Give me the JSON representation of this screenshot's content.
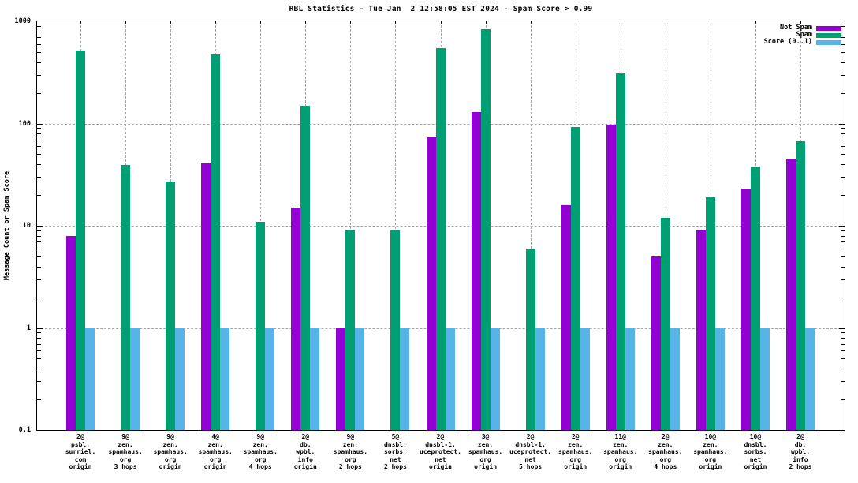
{
  "chart_data": {
    "type": "bar",
    "title": "RBL Statistics - Tue Jan  2 12:58:05 EST 2024 - Spam Score > 0.99",
    "ylabel": "Message Count or Spam Score",
    "xlabel": "",
    "y_scale": "log",
    "ylim": [
      0.1,
      1000
    ],
    "ytick_values": [
      0.1,
      1,
      10,
      100,
      1000
    ],
    "ytick_labels": [
      "0.1",
      "1",
      "10",
      "100",
      "1000"
    ],
    "grid": true,
    "legend_position": "top-right-inside",
    "categories": [
      [
        "2@",
        "psbl.",
        "surriel.",
        "com",
        "origin"
      ],
      [
        "9@",
        "zen.",
        "spamhaus.",
        "org",
        "3 hops"
      ],
      [
        "9@",
        "zen.",
        "spamhaus.",
        "org",
        "origin"
      ],
      [
        "4@",
        "zen.",
        "spamhaus.",
        "org",
        "origin"
      ],
      [
        "9@",
        "zen.",
        "spamhaus.",
        "org",
        "4 hops"
      ],
      [
        "2@",
        "db.",
        "wpbl.",
        "info",
        "origin"
      ],
      [
        "9@",
        "zen.",
        "spamhaus.",
        "org",
        "2 hops"
      ],
      [
        "5@",
        "dnsbl.",
        "sorbs.",
        "net",
        "2 hops"
      ],
      [
        "2@",
        "dnsbl-1.",
        "uceprotect.",
        "net",
        "origin"
      ],
      [
        "3@",
        "zen.",
        "spamhaus.",
        "org",
        "origin"
      ],
      [
        "2@",
        "dnsbl-1.",
        "uceprotect.",
        "net",
        "5 hops"
      ],
      [
        "2@",
        "zen.",
        "spamhaus.",
        "org",
        "origin"
      ],
      [
        "11@",
        "zen.",
        "spamhaus.",
        "org",
        "origin"
      ],
      [
        "2@",
        "zen.",
        "spamhaus.",
        "org",
        "4 hops"
      ],
      [
        "10@",
        "zen.",
        "spamhaus.",
        "org",
        "origin"
      ],
      [
        "10@",
        "dnsbl.",
        "sorbs.",
        "net",
        "origin"
      ],
      [
        "2@",
        "db.",
        "wpbl.",
        "info",
        "2 hops"
      ]
    ],
    "series": [
      {
        "name": "Not Spam",
        "color": "#9400d3",
        "values": [
          8,
          null,
          null,
          41,
          null,
          15,
          1,
          null,
          73,
          130,
          null,
          16,
          98,
          5,
          9,
          23,
          45
        ]
      },
      {
        "name": "Spam",
        "color": "#009e73",
        "values": [
          520,
          39,
          27,
          470,
          11,
          150,
          9,
          9,
          545,
          830,
          6,
          93,
          310,
          12,
          19,
          38,
          67
        ]
      },
      {
        "name": "Score (0..1)",
        "color": "#56b4e9",
        "values": [
          1,
          1,
          1,
          1,
          1,
          1,
          1,
          1,
          1,
          1,
          1,
          1,
          1,
          1,
          1,
          1,
          1
        ]
      }
    ]
  }
}
